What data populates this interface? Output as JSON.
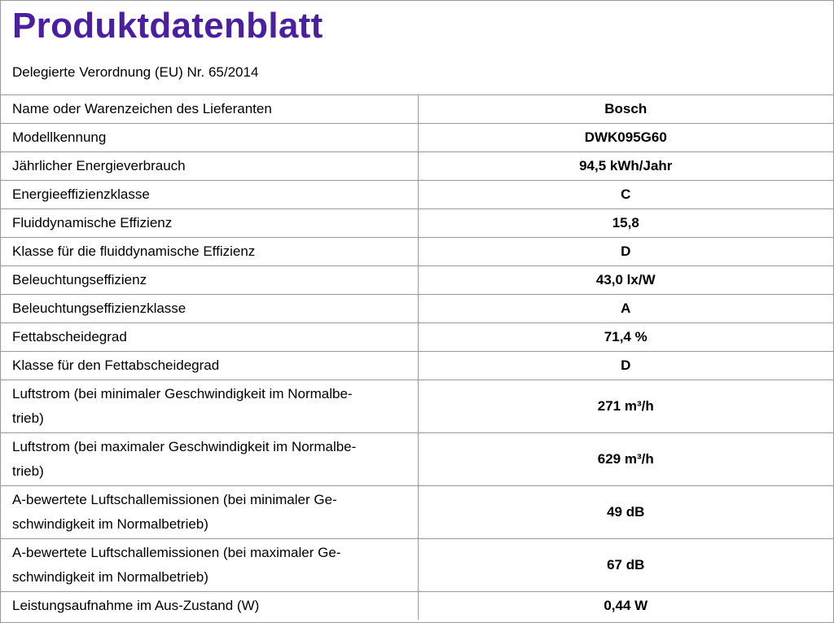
{
  "header": {
    "title": "Produktdatenblatt",
    "subtitle": "Delegierte Verordnung (EU) Nr. 65/2014"
  },
  "table": {
    "rows": [
      [
        "Name oder Warenzeichen des Lieferanten",
        "Bosch"
      ],
      [
        "Modellkennung",
        "DWK095G60"
      ],
      [
        "Jährlicher Energieverbrauch",
        "94,5 kWh/Jahr"
      ],
      [
        "Energieeffizienzklasse",
        "C"
      ],
      [
        "Fluiddynamische Effizienz",
        "15,8"
      ],
      [
        "Klasse für die fluiddynamische Effizienz",
        "D"
      ],
      [
        "Beleuchtungseffizienz",
        "43,0 lx/W"
      ],
      [
        "Beleuchtungseffizienzklasse",
        "A"
      ],
      [
        "Fettabscheidegrad",
        "71,4 %"
      ],
      [
        "Klasse für den Fettabscheidegrad",
        "D"
      ],
      [
        "Luftstrom (bei minimaler Geschwindigkeit im Normalbe-\ntrieb)",
        "271 m³/h"
      ],
      [
        "Luftstrom (bei maximaler Geschwindigkeit im Normalbe-\ntrieb)",
        "629 m³/h"
      ],
      [
        "A-bewertete Luftschallemissionen (bei minimaler Ge-\nschwindigkeit im Normalbetrieb)",
        "49 dB"
      ],
      [
        "A-bewertete Luftschallemissionen (bei maximaler Ge-\nschwindigkeit im Normalbetrieb)",
        "67 dB"
      ],
      [
        "Leistungsaufnahme im Aus-Zustand (W)",
        "0,44 W"
      ]
    ]
  }
}
